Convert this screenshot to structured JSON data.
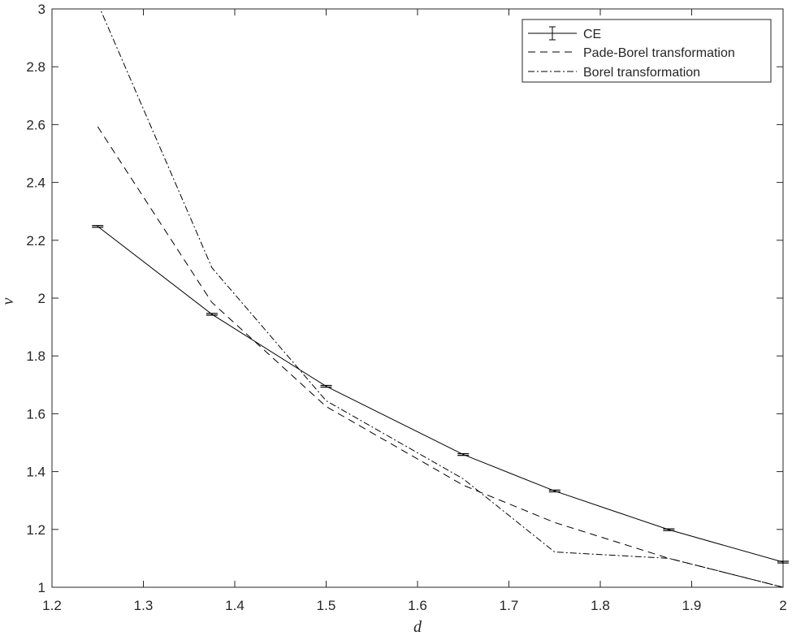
{
  "chart_data": {
    "type": "line",
    "xlabel": "d",
    "ylabel": "ν",
    "xlim": [
      1.2,
      2
    ],
    "ylim": [
      1,
      3
    ],
    "xticks": [
      1.2,
      1.3,
      1.4,
      1.5,
      1.6,
      1.7,
      1.8,
      1.9,
      2
    ],
    "yticks": [
      1,
      1.2,
      1.4,
      1.6,
      1.8,
      2,
      2.2,
      2.4,
      2.6,
      2.8,
      3
    ],
    "xtick_labels": [
      "1.2",
      "1.3",
      "1.4",
      "1.5",
      "1.6",
      "1.7",
      "1.8",
      "1.9",
      "2"
    ],
    "ytick_labels": [
      "1",
      "1.2",
      "1.4",
      "1.6",
      "1.8",
      "2",
      "2.2",
      "2.4",
      "2.6",
      "2.8",
      "3"
    ],
    "grid": false,
    "legend_position": "top-right",
    "series": [
      {
        "name": "CE",
        "style": "solid",
        "error_bars": true,
        "x": [
          1.25,
          1.375,
          1.5,
          1.65,
          1.75,
          1.875,
          2
        ],
        "y": [
          2.248,
          1.944,
          1.695,
          1.459,
          1.333,
          1.199,
          1.087
        ],
        "err": [
          0.003,
          0.003,
          0.003,
          0.003,
          0.003,
          0.003,
          0.003
        ]
      },
      {
        "name": "Pade-Borel transformation",
        "style": "dashed",
        "x": [
          1.25,
          1.375,
          1.5,
          1.65,
          1.75,
          1.875,
          2
        ],
        "y": [
          2.593,
          1.985,
          1.625,
          1.353,
          1.224,
          1.1,
          1.0
        ]
      },
      {
        "name": "Borel transformation",
        "style": "dashdot",
        "x": [
          1.25,
          1.375,
          1.5,
          1.65,
          1.75,
          1.875,
          2
        ],
        "y": [
          3.02,
          2.105,
          1.645,
          1.375,
          1.122,
          1.1,
          1.0
        ]
      }
    ],
    "colors": {
      "line": "#000000",
      "axis": "#262626",
      "background": "#ffffff"
    }
  }
}
